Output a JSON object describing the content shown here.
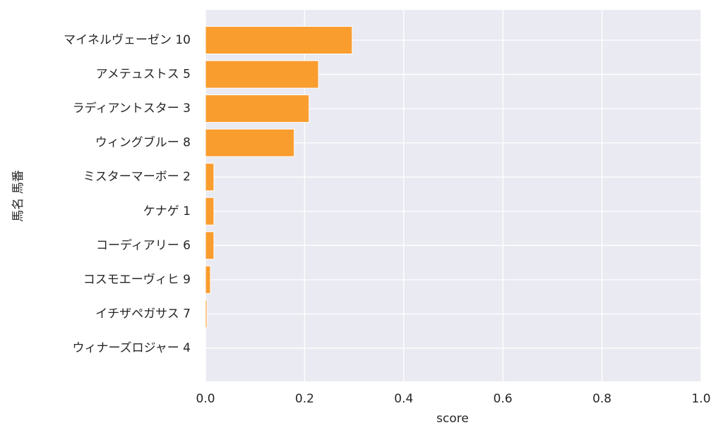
{
  "chart_data": {
    "type": "barh",
    "categories": [
      "マイネルヴェーゼン 10",
      "アメテュストス 5",
      "ラディアントスター 3",
      "ウィングブルー 8",
      "ミスターマーボー 2",
      "ケナゲ 1",
      "コーディアリー 6",
      "コスモエーヴィヒ 9",
      "イチザペガサス 7",
      "ウィナーズロジャー 4"
    ],
    "values": [
      0.296,
      0.228,
      0.209,
      0.179,
      0.017,
      0.017,
      0.017,
      0.01,
      0.003,
      0
    ],
    "color": "#f99d2f",
    "xlabel": "score",
    "ylabel": "馬名 馬番",
    "xlim": [
      0,
      1
    ],
    "xticks": [
      {
        "value": 0,
        "label": "0.0"
      },
      {
        "value": 0.2,
        "label": "0.2"
      },
      {
        "value": 0.4,
        "label": "0.4"
      },
      {
        "value": 0.6,
        "label": "0.6"
      },
      {
        "value": 0.8,
        "label": "0.8"
      },
      {
        "value": 1,
        "label": "1.0"
      }
    ],
    "grid": true
  }
}
